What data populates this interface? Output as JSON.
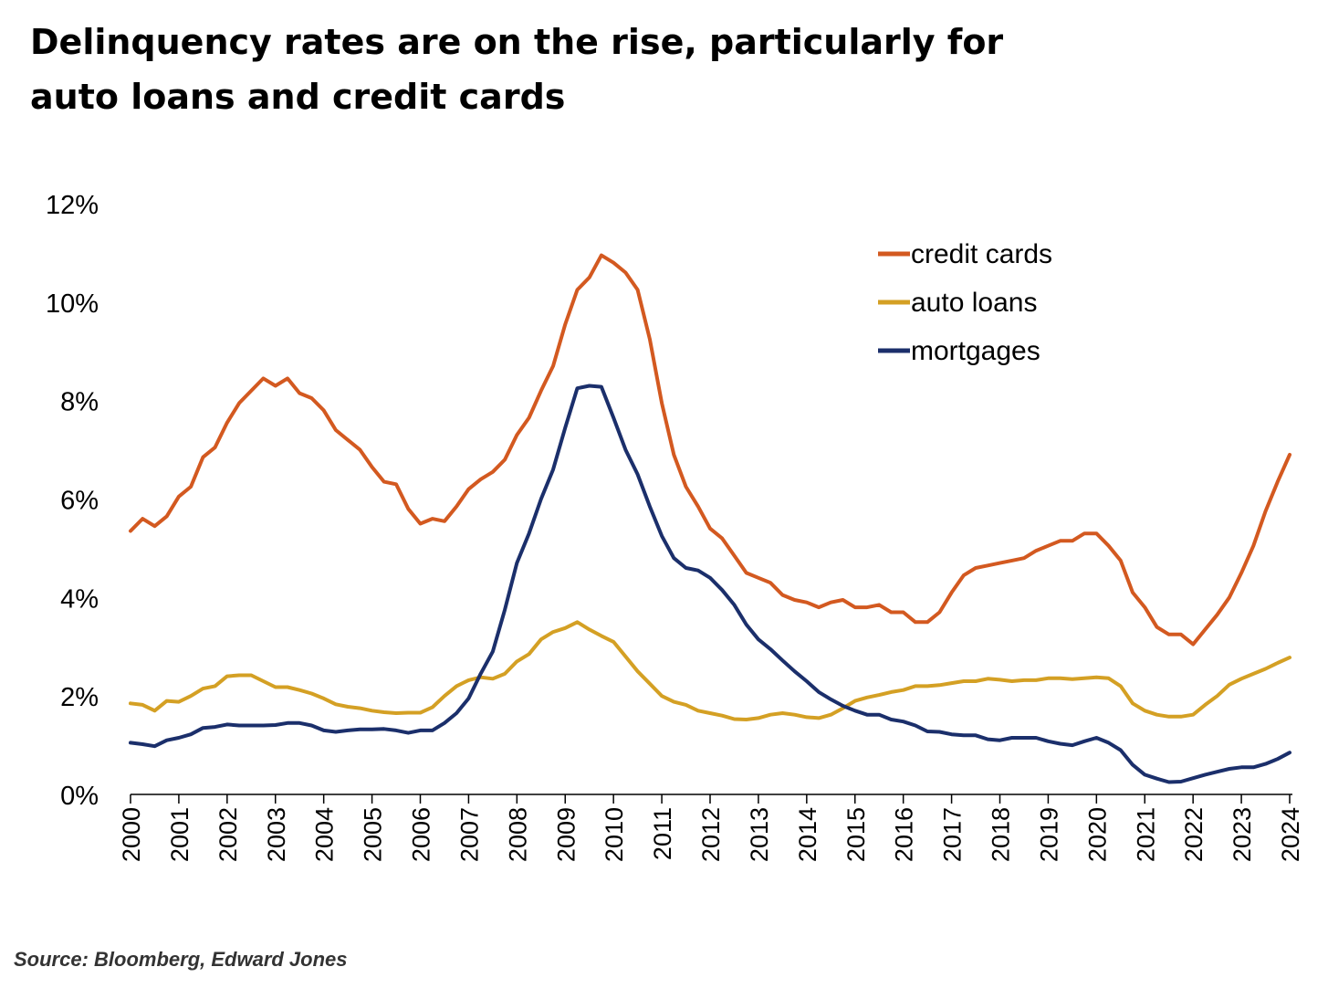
{
  "title_lines": [
    "Delinquency rates are on the rise, particularly for",
    "auto loans and credit cards"
  ],
  "source": "Source: Bloomberg, Edward Jones",
  "chart_data": {
    "type": "line",
    "title": "Delinquency rates are on the rise, particularly for auto loans and credit cards",
    "xlabel": "",
    "ylabel": "",
    "xlim": [
      2000,
      2024
    ],
    "ylim": [
      0,
      12
    ],
    "y_ticks": [
      "0%",
      "2%",
      "4%",
      "6%",
      "8%",
      "10%",
      "12%"
    ],
    "y_tick_values": [
      0,
      2,
      4,
      6,
      8,
      10,
      12
    ],
    "x_ticks": [
      "2000",
      "2001",
      "2002",
      "2003",
      "2004",
      "2005",
      "2006",
      "2007",
      "2008",
      "2009",
      "2010",
      "2011",
      "2012",
      "2013",
      "2014",
      "2015",
      "2016",
      "2017",
      "2018",
      "2019",
      "2020",
      "2021",
      "2022",
      "2023",
      "2024"
    ],
    "grid": false,
    "legend_position": "top-right",
    "series": [
      {
        "name": "credit cards",
        "color": "#D35920",
        "x": [
          2000,
          2000.25,
          2000.5,
          2000.75,
          2001,
          2001.25,
          2001.5,
          2001.75,
          2002,
          2002.25,
          2002.5,
          2002.75,
          2003,
          2003.25,
          2003.5,
          2003.75,
          2004,
          2004.25,
          2004.5,
          2004.75,
          2005,
          2005.25,
          2005.5,
          2005.75,
          2006,
          2006.25,
          2006.5,
          2006.75,
          2007,
          2007.25,
          2007.5,
          2007.75,
          2008,
          2008.25,
          2008.5,
          2008.75,
          2009,
          2009.25,
          2009.5,
          2009.75,
          2010,
          2010.25,
          2010.5,
          2010.75,
          2011,
          2011.25,
          2011.5,
          2011.75,
          2012,
          2012.25,
          2012.5,
          2012.75,
          2013,
          2013.25,
          2013.5,
          2013.75,
          2014,
          2014.25,
          2014.5,
          2014.75,
          2015,
          2015.25,
          2015.5,
          2015.75,
          2016,
          2016.25,
          2016.5,
          2016.75,
          2017,
          2017.25,
          2017.5,
          2017.75,
          2018,
          2018.25,
          2018.5,
          2018.75,
          2019,
          2019.25,
          2019.5,
          2019.75,
          2020,
          2020.25,
          2020.5,
          2020.75,
          2021,
          2021.25,
          2021.5,
          2021.75,
          2022,
          2022.25,
          2022.5,
          2022.75,
          2023,
          2023.25,
          2023.5,
          2023.75,
          2024
        ],
        "values": [
          5.35,
          5.6,
          5.45,
          5.65,
          6.05,
          6.25,
          6.85,
          7.05,
          7.55,
          7.95,
          8.2,
          8.45,
          8.3,
          8.45,
          8.15,
          8.05,
          7.8,
          7.4,
          7.2,
          7.0,
          6.65,
          6.35,
          6.3,
          5.8,
          5.5,
          5.6,
          5.55,
          5.85,
          6.2,
          6.4,
          6.55,
          6.8,
          7.3,
          7.65,
          8.2,
          8.7,
          9.55,
          10.25,
          10.5,
          10.95,
          10.8,
          10.6,
          10.25,
          9.25,
          7.95,
          6.9,
          6.25,
          5.85,
          5.4,
          5.2,
          4.85,
          4.5,
          4.4,
          4.3,
          4.05,
          3.95,
          3.9,
          3.8,
          3.9,
          3.95,
          3.8,
          3.8,
          3.85,
          3.7,
          3.7,
          3.5,
          3.5,
          3.7,
          4.1,
          4.45,
          4.6,
          4.65,
          4.7,
          4.75,
          4.8,
          4.95,
          5.05,
          5.15,
          5.15,
          5.3,
          5.3,
          5.05,
          4.75,
          4.1,
          3.8,
          3.4,
          3.25,
          3.25,
          3.05,
          3.35,
          3.65,
          4.0,
          4.5,
          5.05,
          5.75,
          6.35,
          6.9
        ]
      },
      {
        "name": "auto loans",
        "color": "#D4A024",
        "x": [
          2000,
          2000.25,
          2000.5,
          2000.75,
          2001,
          2001.25,
          2001.5,
          2001.75,
          2002,
          2002.25,
          2002.5,
          2002.75,
          2003,
          2003.25,
          2003.5,
          2003.75,
          2004,
          2004.25,
          2004.5,
          2004.75,
          2005,
          2005.25,
          2005.5,
          2005.75,
          2006,
          2006.25,
          2006.5,
          2006.75,
          2007,
          2007.25,
          2007.5,
          2007.75,
          2008,
          2008.25,
          2008.5,
          2008.75,
          2009,
          2009.25,
          2009.5,
          2009.75,
          2010,
          2010.25,
          2010.5,
          2010.75,
          2011,
          2011.25,
          2011.5,
          2011.75,
          2012,
          2012.25,
          2012.5,
          2012.75,
          2013,
          2013.25,
          2013.5,
          2013.75,
          2014,
          2014.25,
          2014.5,
          2014.75,
          2015,
          2015.25,
          2015.5,
          2015.75,
          2016,
          2016.25,
          2016.5,
          2016.75,
          2017,
          2017.25,
          2017.5,
          2017.75,
          2018,
          2018.25,
          2018.5,
          2018.75,
          2019,
          2019.25,
          2019.5,
          2019.75,
          2020,
          2020.25,
          2020.5,
          2020.75,
          2021,
          2021.25,
          2021.5,
          2021.75,
          2022,
          2022.25,
          2022.5,
          2022.75,
          2023,
          2023.25,
          2023.5,
          2023.75,
          2024
        ],
        "values": [
          1.85,
          1.82,
          1.7,
          1.9,
          1.88,
          2.0,
          2.15,
          2.2,
          2.4,
          2.42,
          2.42,
          2.3,
          2.18,
          2.18,
          2.12,
          2.05,
          1.95,
          1.83,
          1.78,
          1.75,
          1.7,
          1.67,
          1.65,
          1.66,
          1.66,
          1.77,
          2.0,
          2.2,
          2.32,
          2.38,
          2.35,
          2.45,
          2.7,
          2.85,
          3.15,
          3.3,
          3.38,
          3.5,
          3.35,
          3.22,
          3.1,
          2.8,
          2.5,
          2.25,
          2.0,
          1.88,
          1.82,
          1.7,
          1.65,
          1.6,
          1.53,
          1.52,
          1.55,
          1.62,
          1.65,
          1.62,
          1.57,
          1.55,
          1.62,
          1.75,
          1.9,
          1.97,
          2.02,
          2.08,
          2.12,
          2.2,
          2.2,
          2.22,
          2.26,
          2.3,
          2.3,
          2.35,
          2.33,
          2.3,
          2.32,
          2.32,
          2.36,
          2.36,
          2.34,
          2.36,
          2.38,
          2.36,
          2.2,
          1.85,
          1.7,
          1.62,
          1.58,
          1.58,
          1.62,
          1.82,
          2.0,
          2.23,
          2.35,
          2.45,
          2.55,
          2.67,
          2.78
        ]
      },
      {
        "name": "mortgages",
        "color": "#1B2F6B",
        "x": [
          2000,
          2000.25,
          2000.5,
          2000.75,
          2001,
          2001.25,
          2001.5,
          2001.75,
          2002,
          2002.25,
          2002.5,
          2002.75,
          2003,
          2003.25,
          2003.5,
          2003.75,
          2004,
          2004.25,
          2004.5,
          2004.75,
          2005,
          2005.25,
          2005.5,
          2005.75,
          2006,
          2006.25,
          2006.5,
          2006.75,
          2007,
          2007.25,
          2007.5,
          2007.75,
          2008,
          2008.25,
          2008.5,
          2008.75,
          2009,
          2009.25,
          2009.5,
          2009.75,
          2010,
          2010.25,
          2010.5,
          2010.75,
          2011,
          2011.25,
          2011.5,
          2011.75,
          2012,
          2012.25,
          2012.5,
          2012.75,
          2013,
          2013.25,
          2013.5,
          2013.75,
          2014,
          2014.25,
          2014.5,
          2014.75,
          2015,
          2015.25,
          2015.5,
          2015.75,
          2016,
          2016.25,
          2016.5,
          2016.75,
          2017,
          2017.25,
          2017.5,
          2017.75,
          2018,
          2018.25,
          2018.5,
          2018.75,
          2019,
          2019.25,
          2019.5,
          2019.75,
          2020,
          2020.25,
          2020.5,
          2020.75,
          2021,
          2021.25,
          2021.5,
          2021.75,
          2022,
          2022.25,
          2022.5,
          2022.75,
          2023,
          2023.25,
          2023.5,
          2023.75,
          2024
        ],
        "values": [
          1.05,
          1.02,
          0.98,
          1.1,
          1.15,
          1.22,
          1.35,
          1.37,
          1.42,
          1.4,
          1.4,
          1.4,
          1.41,
          1.45,
          1.45,
          1.4,
          1.3,
          1.27,
          1.3,
          1.32,
          1.32,
          1.33,
          1.3,
          1.25,
          1.3,
          1.3,
          1.45,
          1.65,
          1.95,
          2.45,
          2.9,
          3.75,
          4.7,
          5.3,
          6.0,
          6.6,
          7.45,
          8.25,
          8.3,
          8.28,
          7.65,
          7.0,
          6.5,
          5.85,
          5.25,
          4.8,
          4.6,
          4.55,
          4.4,
          4.15,
          3.85,
          3.45,
          3.15,
          2.95,
          2.72,
          2.5,
          2.3,
          2.08,
          1.93,
          1.8,
          1.7,
          1.62,
          1.62,
          1.52,
          1.48,
          1.4,
          1.28,
          1.27,
          1.22,
          1.2,
          1.2,
          1.12,
          1.1,
          1.15,
          1.15,
          1.15,
          1.08,
          1.03,
          1.0,
          1.08,
          1.15,
          1.05,
          0.9,
          0.6,
          0.4,
          0.32,
          0.25,
          0.26,
          0.33,
          0.4,
          0.46,
          0.52,
          0.55,
          0.55,
          0.62,
          0.72,
          0.85
        ]
      }
    ]
  }
}
